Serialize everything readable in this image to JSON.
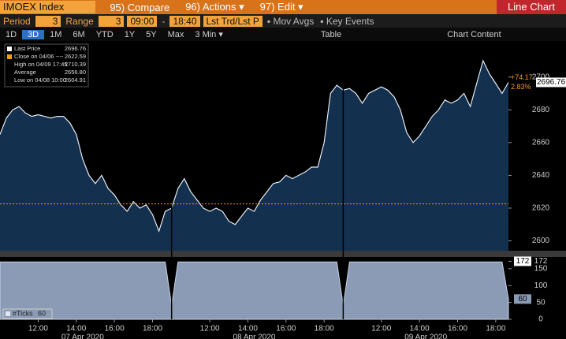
{
  "toolbar": {
    "security": "IMOEX Index",
    "menu": [
      "95) Compare",
      "96) Actions ▾",
      "97) Edit ▾"
    ],
    "chart_name": "Line Chart"
  },
  "settings": {
    "period_label": "Period",
    "period": "3",
    "range_label": "Range",
    "range": "3",
    "start": "09:00",
    "dash": "-",
    "end": "18:40",
    "field": "Lst Trd/Lst P",
    "mov_avgs": "Mov Avgs",
    "key_events": "Key Events"
  },
  "periods": [
    "1D",
    "3D",
    "1M",
    "6M",
    "YTD",
    "1Y",
    "5Y",
    "Max",
    "3 Min ▾"
  ],
  "table": "Table",
  "chart_content": "Chart Content",
  "legend": [
    {
      "label": "Last Price",
      "value": "2696.76"
    },
    {
      "label": "Close on 04/06 ----",
      "value": "2622.59"
    },
    {
      "label": "High on 04/09 17:45",
      "value": "2710.39"
    },
    {
      "label": "Average",
      "value": "2656.80"
    },
    {
      "label": "Low on 04/08 10:00",
      "value": "2604.91"
    }
  ],
  "chart_data": [
    {
      "type": "area",
      "color": "#e6ecf5",
      "fill": "#13304f",
      "categories": [
        null,
        null,
        null,
        null,
        null,
        null,
        "12:00",
        null,
        null,
        null,
        null,
        null,
        "14:00",
        null,
        null,
        null,
        null,
        null,
        "16:00",
        null,
        null,
        null,
        null,
        null,
        "18:00",
        null,
        null,
        null,
        null,
        null,
        null,
        null,
        null,
        "12:00",
        null,
        null,
        null,
        null,
        null,
        "14:00",
        null,
        null,
        null,
        null,
        null,
        "16:00",
        null,
        null,
        null,
        null,
        null,
        "18:00",
        null,
        null,
        null,
        null,
        null,
        null,
        null,
        null,
        "12:00",
        null,
        null,
        null,
        null,
        null,
        "14:00",
        null,
        null,
        null,
        null,
        null,
        "16:00",
        null,
        null,
        null,
        null,
        null,
        "18:00",
        null,
        null
      ],
      "values": [
        2665,
        2675,
        2680,
        2682,
        2678,
        2676,
        2677,
        2676,
        2675,
        2676,
        2676,
        2672,
        2665,
        2650,
        2640,
        2635,
        2640,
        2632,
        2628,
        2622,
        2618,
        2624,
        2620,
        2622,
        2616,
        2606,
        2618,
        2620,
        2632,
        2638,
        2630,
        2625,
        2620,
        2618,
        2620,
        2618,
        2612,
        2610,
        2615,
        2620,
        2618,
        2625,
        2630,
        2635,
        2636,
        2640,
        2638,
        2640,
        2642,
        2645,
        2645,
        2660,
        2690,
        2695,
        2692,
        2693,
        2690,
        2684,
        2690,
        2692,
        2694,
        2692,
        2688,
        2680,
        2666,
        2660,
        2664,
        2670,
        2676,
        2680,
        2686,
        2684,
        2686,
        2690,
        2682,
        2696,
        2710,
        2702,
        2696,
        2690,
        2696.76
      ],
      "dates": [
        "07 Apr 2020",
        "08 Apr 2020",
        "09 Apr 2020"
      ],
      "ylim": [
        2594,
        2722
      ],
      "yticks": [
        2600,
        2620,
        2640,
        2660,
        2680,
        2700
      ],
      "reference": 2622.59,
      "reference_color": "#f39c12",
      "change": "+74.17",
      "change_pct": "2.83%"
    },
    {
      "type": "area",
      "fill": "#8c9bb5",
      "name": "#Ticks",
      "values": [
        170,
        170,
        170,
        170,
        170,
        170,
        170,
        170,
        170,
        170,
        170,
        170,
        170,
        170,
        170,
        170,
        170,
        170,
        170,
        170,
        170,
        170,
        170,
        170,
        170,
        170,
        170,
        40,
        170,
        170,
        170,
        170,
        170,
        170,
        170,
        170,
        170,
        170,
        170,
        170,
        170,
        170,
        170,
        170,
        170,
        170,
        170,
        170,
        170,
        170,
        170,
        170,
        170,
        170,
        40,
        170,
        170,
        170,
        170,
        170,
        170,
        170,
        170,
        170,
        170,
        170,
        170,
        170,
        170,
        170,
        170,
        170,
        170,
        170,
        170,
        170,
        170,
        170,
        170,
        170,
        60
      ],
      "ylim": [
        0,
        180
      ],
      "yticks": [
        0,
        50,
        100,
        150,
        172
      ]
    }
  ]
}
